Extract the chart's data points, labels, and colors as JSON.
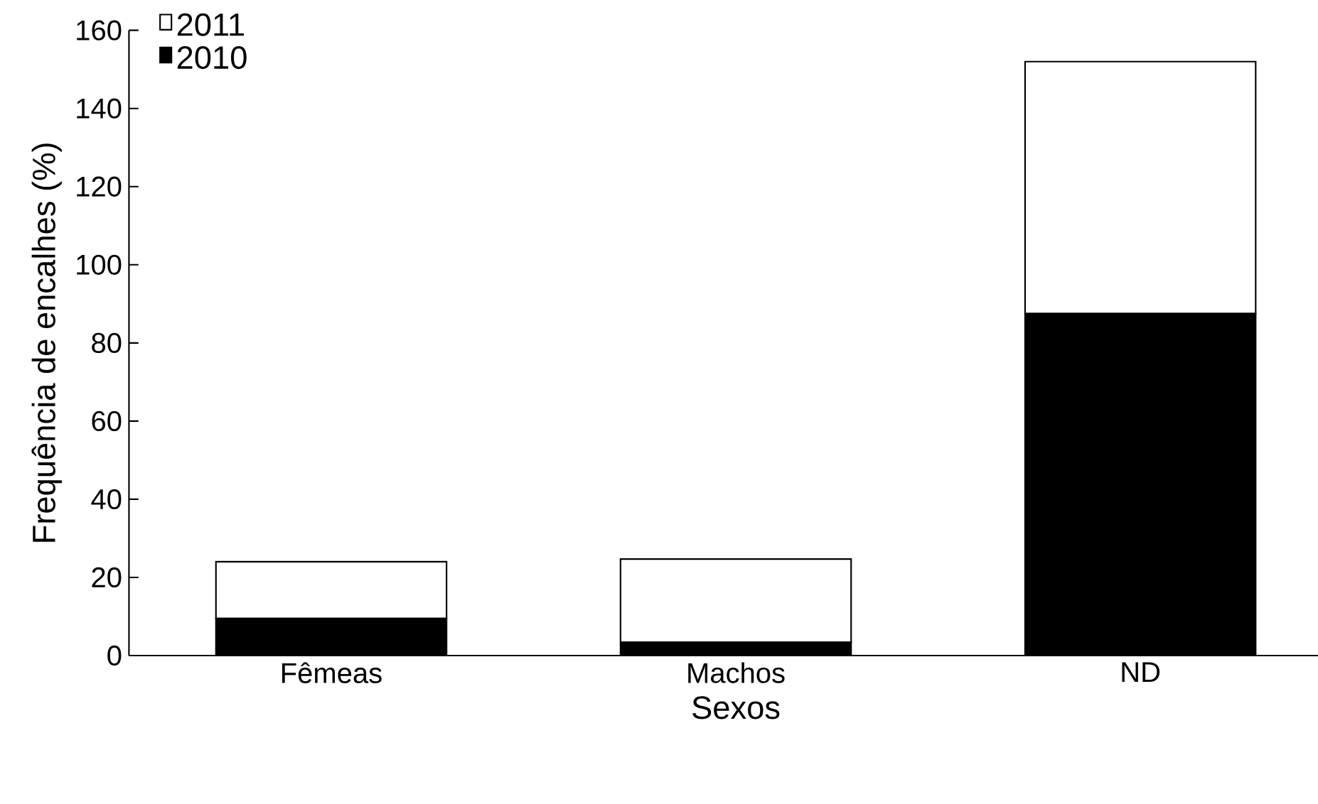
{
  "chart_data": {
    "type": "bar",
    "stacked": true,
    "xlabel": "Sexos",
    "ylabel": "Frequência de encalhes (%)",
    "categories": [
      "Fêmeas",
      "Machos",
      "ND"
    ],
    "series": [
      {
        "name": "2010",
        "color": "#000000",
        "values": [
          9.5,
          3.4,
          87.5
        ]
      },
      {
        "name": "2011",
        "color": "#ffffff",
        "values": [
          14.5,
          21.3,
          64.5
        ]
      }
    ],
    "ylim": [
      0,
      160
    ],
    "yticks": [
      0,
      20,
      40,
      60,
      80,
      100,
      120,
      140,
      160
    ],
    "grid": false,
    "legend": "top left"
  }
}
